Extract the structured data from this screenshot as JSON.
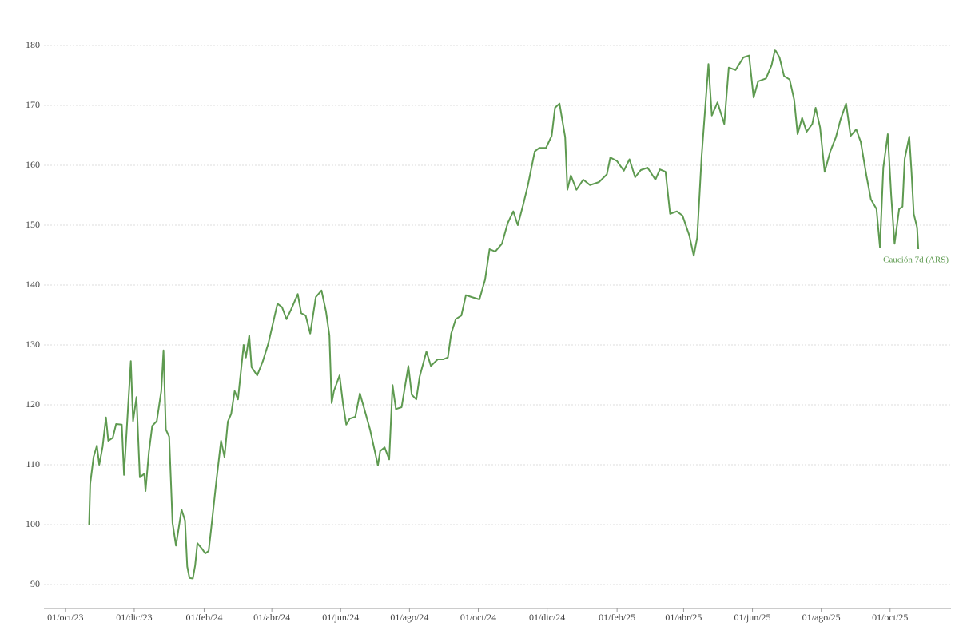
{
  "chart_data": {
    "type": "line",
    "x": [
      "2023-10-22",
      "2023-10-23",
      "2023-10-26",
      "2023-10-29",
      "2023-10-31",
      "2023-11-03",
      "2023-11-06",
      "2023-11-08",
      "2023-11-12",
      "2023-11-15",
      "2023-11-20",
      "2023-11-22",
      "2023-11-28",
      "2023-11-30",
      "2023-12-03",
      "2023-12-06",
      "2023-12-10",
      "2023-12-11",
      "2023-12-14",
      "2023-12-17",
      "2023-12-21",
      "2023-12-25",
      "2023-12-27",
      "2023-12-29",
      "2024-01-01",
      "2024-01-04",
      "2024-01-07",
      "2024-01-12",
      "2024-01-15",
      "2024-01-17",
      "2024-01-19",
      "2024-01-22",
      "2024-01-24",
      "2024-01-26",
      "2024-01-30",
      "2024-02-02",
      "2024-02-05",
      "2024-02-07",
      "2024-02-12",
      "2024-02-16",
      "2024-02-19",
      "2024-02-22",
      "2024-02-25",
      "2024-02-28",
      "2024-03-02",
      "2024-03-07",
      "2024-03-09",
      "2024-03-12",
      "2024-03-14",
      "2024-03-19",
      "2024-03-24",
      "2024-03-29",
      "2024-04-06",
      "2024-04-10",
      "2024-04-14",
      "2024-04-18",
      "2024-04-24",
      "2024-04-27",
      "2024-05-01",
      "2024-05-05",
      "2024-05-10",
      "2024-05-15",
      "2024-05-19",
      "2024-05-22",
      "2024-05-24",
      "2024-05-26",
      "2024-05-31",
      "2024-06-03",
      "2024-06-06",
      "2024-06-09",
      "2024-06-14",
      "2024-06-18",
      "2024-06-22",
      "2024-06-27",
      "2024-07-04",
      "2024-07-06",
      "2024-07-10",
      "2024-07-14",
      "2024-07-17",
      "2024-07-20",
      "2024-07-25",
      "2024-07-31",
      "2024-08-03",
      "2024-08-07",
      "2024-08-10",
      "2024-08-16",
      "2024-08-20",
      "2024-08-26",
      "2024-08-31",
      "2024-09-04",
      "2024-09-07",
      "2024-09-11",
      "2024-09-16",
      "2024-09-20",
      "2024-09-25",
      "2024-10-02",
      "2024-10-07",
      "2024-10-11",
      "2024-10-16",
      "2024-10-22",
      "2024-10-27",
      "2024-11-01",
      "2024-11-05",
      "2024-11-10",
      "2024-11-14",
      "2024-11-20",
      "2024-11-24",
      "2024-11-30",
      "2024-12-05",
      "2024-12-08",
      "2024-12-12",
      "2024-12-17",
      "2024-12-19",
      "2024-12-22",
      "2024-12-27",
      "2025-01-02",
      "2025-01-08",
      "2025-01-16",
      "2025-01-23",
      "2025-01-26",
      "2025-02-01",
      "2025-02-07",
      "2025-02-12",
      "2025-02-17",
      "2025-02-22",
      "2025-02-28",
      "2025-03-07",
      "2025-03-11",
      "2025-03-16",
      "2025-03-20",
      "2025-03-26",
      "2025-03-31",
      "2025-04-06",
      "2025-04-10",
      "2025-04-13",
      "2025-04-17",
      "2025-04-23",
      "2025-04-26",
      "2025-05-01",
      "2025-05-07",
      "2025-05-11",
      "2025-05-17",
      "2025-05-24",
      "2025-05-29",
      "2025-06-02",
      "2025-06-06",
      "2025-06-13",
      "2025-06-18",
      "2025-06-21",
      "2025-06-25",
      "2025-06-29",
      "2025-07-04",
      "2025-07-08",
      "2025-07-11",
      "2025-07-15",
      "2025-07-19",
      "2025-07-24",
      "2025-07-27",
      "2025-07-31",
      "2025-08-04",
      "2025-08-09",
      "2025-08-14",
      "2025-08-18",
      "2025-08-23",
      "2025-08-27",
      "2025-09-01",
      "2025-09-05",
      "2025-09-10",
      "2025-09-14",
      "2025-09-19",
      "2025-09-22",
      "2025-09-25",
      "2025-09-29",
      "2025-10-02",
      "2025-10-05",
      "2025-10-09",
      "2025-10-12",
      "2025-10-14",
      "2025-10-18",
      "2025-10-20",
      "2025-10-22",
      "2025-10-25",
      "2025-10-26"
    ],
    "series": [
      {
        "name": "Caución 7d (ARS)",
        "color": "#5e9a50",
        "values": [
          100,
          106.8,
          111.3,
          113.2,
          110,
          113,
          117.9,
          114,
          114.5,
          116.8,
          116.7,
          108.3,
          127.3,
          117.3,
          121.3,
          107.9,
          108.5,
          105.6,
          112.1,
          116.5,
          117.3,
          122.3,
          129.1,
          115.9,
          114.7,
          100.3,
          96.5,
          102.5,
          100.7,
          93,
          91.1,
          91,
          93.2,
          96.9,
          96,
          95.2,
          95.6,
          98.9,
          107.6,
          114,
          111.3,
          117.2,
          118.5,
          122.3,
          120.9,
          130,
          127.9,
          131.6,
          126.3,
          124.9,
          127.3,
          130.3,
          136.9,
          136.3,
          134.3,
          135.9,
          138.5,
          135.3,
          134.9,
          131.9,
          138,
          139.1,
          135.6,
          131.6,
          120.3,
          122.3,
          124.9,
          120.3,
          116.7,
          117.7,
          118,
          121.9,
          119.3,
          115.9,
          109.9,
          112.3,
          112.9,
          110.9,
          123.3,
          119.3,
          119.6,
          126.5,
          121.7,
          120.9,
          124.7,
          128.9,
          126.5,
          127.6,
          127.6,
          127.9,
          131.9,
          134.3,
          134.9,
          138.3,
          138,
          137.6,
          140.9,
          146,
          145.6,
          146.9,
          150.3,
          152.3,
          150,
          153.6,
          156.7,
          162.3,
          162.9,
          162.9,
          164.9,
          169.6,
          170.3,
          164.7,
          155.9,
          158.3,
          155.9,
          157.6,
          156.7,
          157.2,
          158.5,
          161.3,
          160.7,
          159.1,
          161,
          158,
          159.2,
          159.6,
          157.6,
          159.3,
          158.9,
          151.9,
          152.3,
          151.6,
          148.3,
          144.9,
          147.9,
          161.6,
          176.9,
          168.3,
          170.5,
          166.9,
          176.3,
          175.9,
          178,
          178.3,
          171.3,
          174,
          174.5,
          176.7,
          179.3,
          178,
          174.9,
          174.3,
          170.9,
          165.2,
          167.9,
          165.6,
          166.9,
          169.6,
          166.3,
          158.9,
          162.3,
          164.7,
          167.6,
          170.3,
          164.9,
          166,
          163.9,
          158.3,
          154.3,
          152.7,
          146.3,
          159.6,
          165.2,
          154.9,
          146.9,
          152.7,
          153.1,
          161.1,
          164.8,
          158.9,
          151.9,
          149.6,
          146
        ]
      }
    ],
    "xlim": [
      "2023-09-12",
      "2025-11-24"
    ],
    "xticks": [
      {
        "value": "2023-10-01",
        "label": "01/oct/23"
      },
      {
        "value": "2023-12-01",
        "label": "01/dic/23"
      },
      {
        "value": "2024-02-01",
        "label": "01/feb/24"
      },
      {
        "value": "2024-04-01",
        "label": "01/abr/24"
      },
      {
        "value": "2024-06-01",
        "label": "01/jun/24"
      },
      {
        "value": "2024-08-01",
        "label": "01/ago/24"
      },
      {
        "value": "2024-10-01",
        "label": "01/oct/24"
      },
      {
        "value": "2024-12-01",
        "label": "01/dic/24"
      },
      {
        "value": "2025-02-01",
        "label": "01/feb/25"
      },
      {
        "value": "2025-04-01",
        "label": "01/abr/25"
      },
      {
        "value": "2025-06-01",
        "label": "01/jun/25"
      },
      {
        "value": "2025-08-01",
        "label": "01/ago/25"
      },
      {
        "value": "2025-10-01",
        "label": "01/oct/25"
      }
    ],
    "ylim": [
      86,
      183
    ],
    "yticks": [
      90,
      100,
      110,
      120,
      130,
      140,
      150,
      160,
      170,
      180
    ],
    "grid": true
  }
}
